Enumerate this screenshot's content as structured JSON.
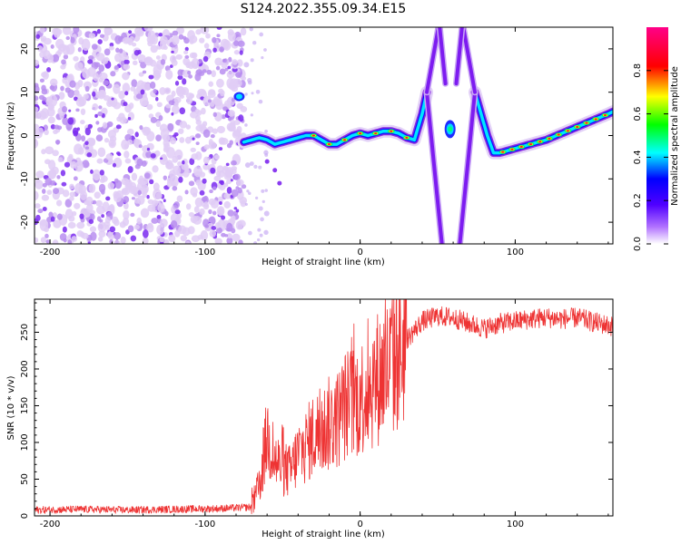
{
  "figure_title": "S124.2022.355.09.34.E15",
  "chart_data": [
    {
      "type": "heatmap",
      "title": "S124.2022.355.09.34.E15",
      "xlabel": "Height of straight line (km)",
      "ylabel": "Frequency (Hz)",
      "xlim": [
        -210,
        163
      ],
      "ylim": [
        -25,
        25
      ],
      "x_ticks": [
        -200,
        -100,
        0,
        100
      ],
      "y_ticks": [
        -20,
        -10,
        0,
        10,
        20
      ],
      "colorbar": {
        "label": "Normalized spectral amplitude",
        "range": [
          0,
          1
        ],
        "ticks": [
          0.0,
          0.2,
          0.4,
          0.6,
          0.8
        ],
        "colormap": [
          "#f8f4fd",
          "#8800ff",
          "#0000ff",
          "#00ffff",
          "#00ff00",
          "#ffff00",
          "#ff0000",
          "#ff0088"
        ]
      },
      "noise_region_x": [
        -210,
        -75
      ],
      "ridge": {
        "x": [
          -75,
          -70,
          -65,
          -60,
          -55,
          -50,
          -45,
          -40,
          -35,
          -30,
          -25,
          -20,
          -15,
          -10,
          -5,
          0,
          5,
          10,
          15,
          20,
          25,
          30,
          35,
          40,
          43
        ],
        "y": [
          -1.5,
          -1,
          -0.5,
          -1,
          -2,
          -1.5,
          -1,
          -0.5,
          0,
          0,
          -1,
          -2,
          -2,
          -1,
          0,
          0.5,
          0,
          0.5,
          1,
          1,
          0.5,
          -0.5,
          -1,
          5,
          10
        ]
      },
      "ridge_right": {
        "x": [
          74,
          78,
          82,
          86,
          90,
          95,
          100,
          110,
          120,
          130,
          140,
          150,
          160,
          163
        ],
        "y": [
          10,
          5,
          0,
          -4,
          -4,
          -3.5,
          -3,
          -2,
          -1,
          0.5,
          2,
          3.5,
          5,
          5.5
        ]
      },
      "peak_center": {
        "x": 58,
        "y": 1.5
      },
      "annotations": [
        {
          "x": -78,
          "y": 9,
          "text": ""
        }
      ]
    },
    {
      "type": "line",
      "xlabel": "Height of straight line (km)",
      "ylabel": "SNR (10 * v/v)",
      "xlim": [
        -210,
        163
      ],
      "ylim": [
        0,
        295
      ],
      "x_ticks": [
        -200,
        -100,
        0,
        100
      ],
      "y_ticks": [
        0,
        50,
        100,
        150,
        200,
        250
      ],
      "color": "#ee3333",
      "series": [
        {
          "x": [
            -210,
            -180,
            -150,
            -120,
            -90,
            -70,
            -65,
            -60,
            -55,
            -50,
            -45,
            -40,
            -35,
            -30,
            -25,
            -20,
            -15,
            -10,
            -5,
            0,
            10,
            20,
            30,
            40,
            50,
            60,
            70,
            80,
            90,
            100,
            110,
            120,
            130,
            140,
            150,
            163
          ],
          "values": [
            8,
            9,
            8,
            9,
            10,
            12,
            40,
            110,
            75,
            65,
            60,
            85,
            95,
            110,
            115,
            125,
            130,
            150,
            155,
            160,
            185,
            205,
            240,
            265,
            272,
            270,
            262,
            255,
            262,
            265,
            268,
            270,
            268,
            270,
            264,
            258
          ]
        }
      ]
    }
  ]
}
